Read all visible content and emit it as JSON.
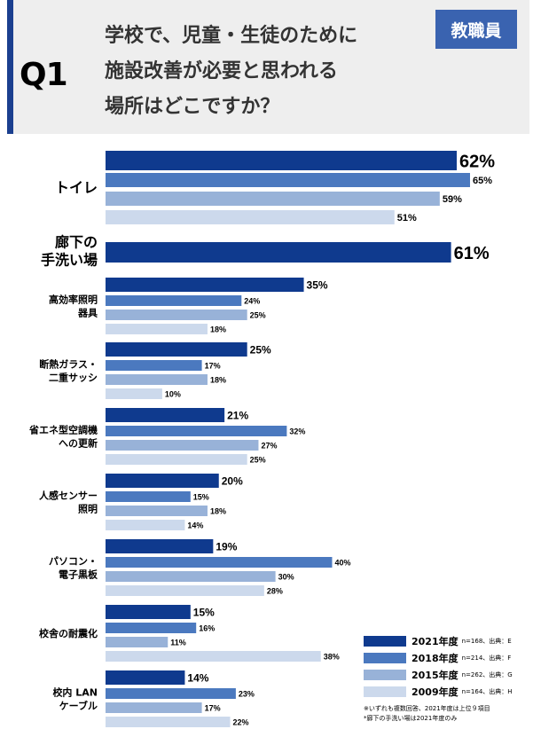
{
  "header": {
    "q_label": "Q1",
    "title_lines": [
      "学校で、児童・生徒のために",
      "施設改善が必要と思われる",
      "場所はどこですか？"
    ],
    "badge": "教職員"
  },
  "colors": {
    "y2021": "#0f3a8e",
    "y2018": "#4b79bf",
    "y2015": "#98b2d8",
    "y2009": "#ccd9ec",
    "header_bg": "#eeeeee",
    "badge_bg": "#3a63b0"
  },
  "chart_data": {
    "type": "bar",
    "orientation": "horizontal",
    "unit": "%",
    "xlim": [
      0,
      62
    ],
    "series_names": [
      "2021年度",
      "2018年度",
      "2015年度",
      "2009年度"
    ],
    "categories": [
      {
        "label": [
          "トイレ"
        ],
        "values": [
          {
            "series": "2021年度",
            "value": 62,
            "label": "62%"
          },
          {
            "series": "2018年度",
            "value": 65,
            "label": "65%"
          },
          {
            "series": "2015年度",
            "value": 59,
            "label": "59%"
          },
          {
            "series": "2009年度",
            "value": 51,
            "label": "51%"
          }
        ]
      },
      {
        "label": [
          "廊下の",
          "手洗い場"
        ],
        "values": [
          {
            "series": "2021年度",
            "value": 61,
            "label": "61%"
          }
        ]
      },
      {
        "label": [
          "高効率照明",
          "器具"
        ],
        "values": [
          {
            "series": "2021年度",
            "value": 35,
            "label": "35%"
          },
          {
            "series": "2018年度",
            "value": 24,
            "label": "24%"
          },
          {
            "series": "2015年度",
            "value": 25,
            "label": "25%"
          },
          {
            "series": "2009年度",
            "value": 18,
            "label": "18%"
          }
        ]
      },
      {
        "label": [
          "断熱ガラス・",
          "二重サッシ"
        ],
        "values": [
          {
            "series": "2021年度",
            "value": 25,
            "label": "25%"
          },
          {
            "series": "2018年度",
            "value": 17,
            "label": "17%"
          },
          {
            "series": "2015年度",
            "value": 18,
            "label": "18%"
          },
          {
            "series": "2009年度",
            "value": 10,
            "label": "10%"
          }
        ]
      },
      {
        "label": [
          "省エネ型空調機",
          "への更新"
        ],
        "values": [
          {
            "series": "2021年度",
            "value": 21,
            "label": "21%"
          },
          {
            "series": "2018年度",
            "value": 32,
            "label": "32%"
          },
          {
            "series": "2015年度",
            "value": 27,
            "label": "27%"
          },
          {
            "series": "2009年度",
            "value": 25,
            "label": "25%"
          }
        ]
      },
      {
        "label": [
          "人感センサー",
          "照明"
        ],
        "values": [
          {
            "series": "2021年度",
            "value": 20,
            "label": "20%"
          },
          {
            "series": "2018年度",
            "value": 15,
            "label": "15%"
          },
          {
            "series": "2015年度",
            "value": 18,
            "label": "18%"
          },
          {
            "series": "2009年度",
            "value": 14,
            "label": "14%"
          }
        ]
      },
      {
        "label": [
          "パソコン・",
          "電子黒板"
        ],
        "values": [
          {
            "series": "2021年度",
            "value": 19,
            "label": "19%"
          },
          {
            "series": "2018年度",
            "value": 40,
            "label": "40%"
          },
          {
            "series": "2015年度",
            "value": 30,
            "label": "30%"
          },
          {
            "series": "2009年度",
            "value": 28,
            "label": "28%"
          }
        ]
      },
      {
        "label": [
          "校舎の耐震化"
        ],
        "values": [
          {
            "series": "2021年度",
            "value": 15,
            "label": "15%"
          },
          {
            "series": "2018年度",
            "value": 16,
            "label": "16%"
          },
          {
            "series": "2015年度",
            "value": 11,
            "label": "11%"
          },
          {
            "series": "2009年度",
            "value": 38,
            "label": "38%"
          }
        ]
      },
      {
        "label": [
          "校内 LAN",
          "ケーブル"
        ],
        "values": [
          {
            "series": "2021年度",
            "value": 14,
            "label": "14%"
          },
          {
            "series": "2018年度",
            "value": 23,
            "label": "23%"
          },
          {
            "series": "2015年度",
            "value": 17,
            "label": "17%"
          },
          {
            "series": "2009年度",
            "value": 22,
            "label": "22%"
          }
        ]
      }
    ]
  },
  "legend": [
    {
      "year": "2021年度",
      "note": "n=168、出典：E",
      "color_key": "y2021"
    },
    {
      "year": "2018年度",
      "note": "n=214、出典：F",
      "color_key": "y2018"
    },
    {
      "year": "2015年度",
      "note": "n=262、出典：G",
      "color_key": "y2015"
    },
    {
      "year": "2009年度",
      "note": "n=164、出典：H",
      "color_key": "y2009"
    }
  ],
  "footnotes": [
    "※いずれも複数回答、2021年度は上位９項目",
    "*廊下の手洗い場は2021年度のみ"
  ]
}
